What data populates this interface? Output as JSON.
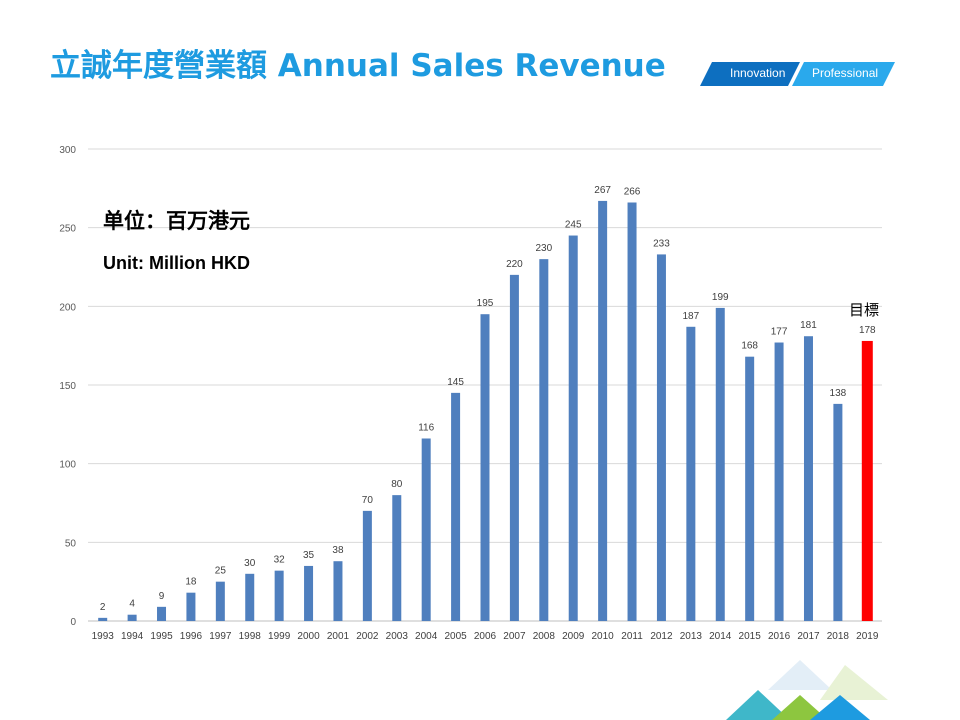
{
  "header": {
    "title": "立誠年度營業額 Annual Sales Revenue",
    "banner_left": "Innovation",
    "banner_right": "Professional"
  },
  "annotations": {
    "unit_cn": "单位：百万港元",
    "unit_en": "Unit: Million HKD",
    "target_label": "目標"
  },
  "colors": {
    "title": "#1e9be0",
    "bar": "#4f7fbe",
    "target_bar": "#ff0000",
    "banner_dark": "#0d6fc0",
    "banner_light": "#2aa9ec"
  },
  "chart_data": {
    "type": "bar",
    "title": "Annual Sales Revenue",
    "xlabel": "",
    "ylabel": "",
    "ylim": [
      0,
      300
    ],
    "yticks": [
      0,
      50,
      100,
      150,
      200,
      250,
      300
    ],
    "grid": true,
    "categories": [
      "1993",
      "1994",
      "1995",
      "1996",
      "1997",
      "1998",
      "1999",
      "2000",
      "2001",
      "2002",
      "2003",
      "2004",
      "2005",
      "2006",
      "2007",
      "2008",
      "2009",
      "2010",
      "2011",
      "2012",
      "2013",
      "2014",
      "2015",
      "2016",
      "2017",
      "2018",
      "2019"
    ],
    "values": [
      2,
      4,
      9,
      18,
      25,
      30,
      32,
      35,
      38,
      70,
      80,
      116,
      145,
      195,
      220,
      230,
      245,
      267,
      266,
      233,
      187,
      199,
      168,
      177,
      181,
      138,
      178
    ],
    "highlight_category": "2019",
    "highlight_note": "目標"
  }
}
